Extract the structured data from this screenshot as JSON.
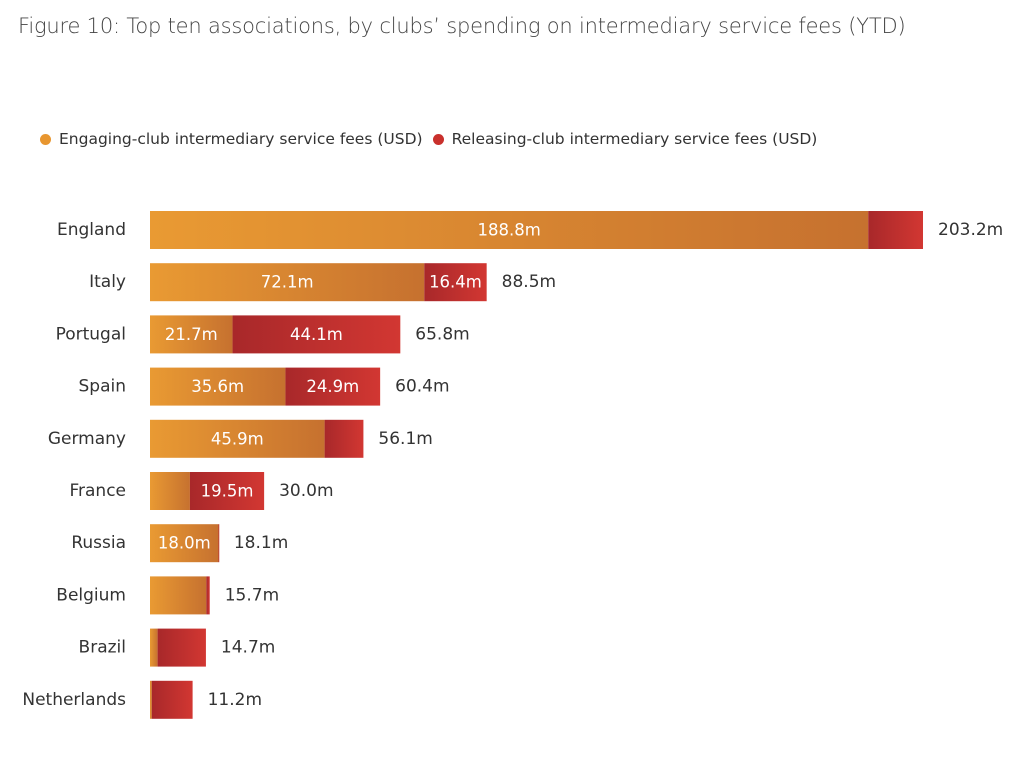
{
  "chart_data": {
    "type": "bar",
    "orientation": "horizontal",
    "stacked": true,
    "title": "Figure 10: Top ten associations, by clubs’ spending on intermediary service fees (YTD)",
    "categories": [
      "England",
      "Italy",
      "Portugal",
      "Spain",
      "Germany",
      "France",
      "Russia",
      "Belgium",
      "Brazil",
      "Netherlands"
    ],
    "series": [
      {
        "name": "Engaging-club intermediary service fees (USD)",
        "color": "#E8962F",
        "values": [
          188.8,
          72.1,
          21.7,
          35.6,
          45.9,
          10.5,
          18.0,
          14.8,
          2.0,
          0.5
        ],
        "labels": [
          "188.8m",
          "72.1m",
          "21.7m",
          "35.6m",
          "45.9m",
          "",
          "18.0m",
          "",
          "",
          ""
        ]
      },
      {
        "name": "Releasing-club intermediary service fees (USD)",
        "color": "#C9302C",
        "values": [
          14.4,
          16.4,
          44.1,
          24.9,
          10.2,
          19.5,
          0.1,
          0.9,
          12.7,
          10.7
        ],
        "labels": [
          "",
          "16.4m",
          "44.1m",
          "24.9m",
          "",
          "19.5m",
          "",
          "",
          "",
          ""
        ]
      }
    ],
    "totals": [
      "203.2m",
      "88.5m",
      "65.8m",
      "60.4m",
      "56.1m",
      "30.0m",
      "18.1m",
      "15.7m",
      "14.7m",
      "11.2m"
    ],
    "xlim": [
      0,
      203.2
    ],
    "grid": false,
    "legend_position": "top-left"
  }
}
